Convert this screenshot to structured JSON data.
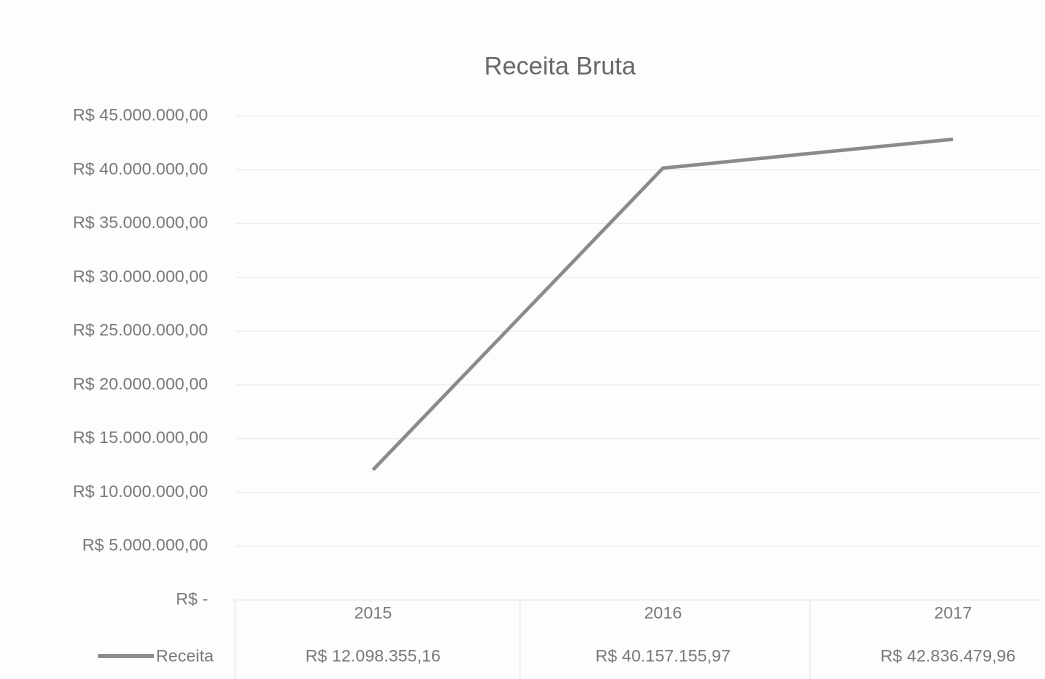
{
  "chart_data": {
    "type": "line",
    "title": "Receita Bruta",
    "categories": [
      "2015",
      "2016",
      "2017"
    ],
    "series": [
      {
        "name": "Receita",
        "color": "#8a8a8a",
        "values": [
          12098355.16,
          40157155.97,
          42836479.96
        ],
        "value_labels": [
          "R$ 12.098.355,16",
          "R$ 40.157.155,97",
          "R$ 42.836.479,96"
        ]
      }
    ],
    "ylim": [
      0,
      45000000
    ],
    "yticks": [
      {
        "value": 0,
        "label": "R$ -"
      },
      {
        "value": 5000000,
        "label": "R$ 5.000.000,00"
      },
      {
        "value": 10000000,
        "label": "R$ 10.000.000,00"
      },
      {
        "value": 15000000,
        "label": "R$ 15.000.000,00"
      },
      {
        "value": 20000000,
        "label": "R$ 20.000.000,00"
      },
      {
        "value": 25000000,
        "label": "R$ 25.000.000,00"
      },
      {
        "value": 30000000,
        "label": "R$ 30.000.000,00"
      },
      {
        "value": 35000000,
        "label": "R$ 35.000.000,00"
      },
      {
        "value": 40000000,
        "label": "R$ 40.000.000,00"
      },
      {
        "value": 45000000,
        "label": "R$ 45.000.000,00"
      }
    ],
    "grid": true
  }
}
